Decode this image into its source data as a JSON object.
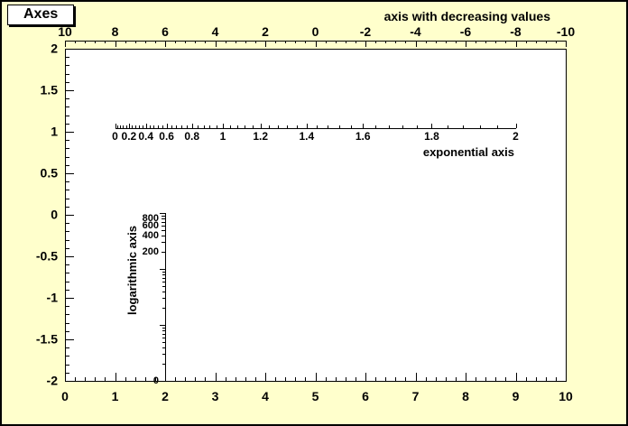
{
  "canvas": {
    "title": "Axes",
    "background_color": "#ffffcc",
    "frame_color": "#ffffff",
    "axis_color": "#000000"
  },
  "chart_data": {
    "type": "axes-demo",
    "title": "Axes",
    "grid": false,
    "frame": {
      "x_range": [
        0,
        10
      ],
      "y_range": [
        -2,
        2
      ]
    },
    "axes": [
      {
        "id": "frame-bottom",
        "scale": "linear",
        "orientation": "horizontal-bottom",
        "range": [
          0,
          10
        ],
        "major_ticks": [
          0,
          1,
          2,
          3,
          4,
          5,
          6,
          7,
          8,
          9,
          10
        ],
        "labels": [
          "0",
          "1",
          "2",
          "3",
          "4",
          "5",
          "6",
          "7",
          "8",
          "9",
          "10"
        ],
        "minor_step": 0.2,
        "title": ""
      },
      {
        "id": "frame-left",
        "scale": "linear",
        "orientation": "vertical-left",
        "range": [
          -2,
          2
        ],
        "major_ticks": [
          2,
          1.5,
          1,
          0.5,
          0,
          -0.5,
          -1,
          -1.5,
          -2
        ],
        "labels": [
          "2",
          "1.5",
          "1",
          "0.5",
          "0",
          "-0.5",
          "-1",
          "-1.5",
          "-2"
        ],
        "minor_step": 0.1,
        "title": ""
      },
      {
        "id": "top-decreasing",
        "scale": "linear",
        "orientation": "horizontal-top",
        "range": [
          10,
          -10
        ],
        "major_ticks": [
          10,
          8,
          6,
          4,
          2,
          0,
          -2,
          -4,
          -6,
          -8,
          -10
        ],
        "labels": [
          "10",
          "8",
          "6",
          "4",
          "2",
          "0",
          "-2",
          "-4",
          "-6",
          "-8",
          "-10"
        ],
        "minor_step": 0.4,
        "title": "axis with decreasing values"
      },
      {
        "id": "exponential",
        "scale": "exponential",
        "orientation": "horizontal",
        "range": [
          0,
          2
        ],
        "major_ticks": [
          0,
          0.2,
          0.4,
          0.6,
          0.8,
          1,
          1.2,
          1.4,
          1.6,
          1.8,
          2
        ],
        "labels": [
          "0",
          "0.2",
          "0.4",
          "0.6",
          "0.8",
          "1",
          "1.2",
          "1.4",
          "1.6",
          "1.8",
          "2"
        ],
        "minor_step": 0.04,
        "title": "exponential axis"
      },
      {
        "id": "logarithmic",
        "scale": "log",
        "orientation": "vertical",
        "range": [
          1,
          1000
        ],
        "labeled_ticks": [
          800,
          600,
          400,
          200
        ],
        "labels": [
          "800",
          "600",
          "400",
          "200"
        ],
        "end_label": "0",
        "title": "logarithmic axis"
      }
    ]
  }
}
